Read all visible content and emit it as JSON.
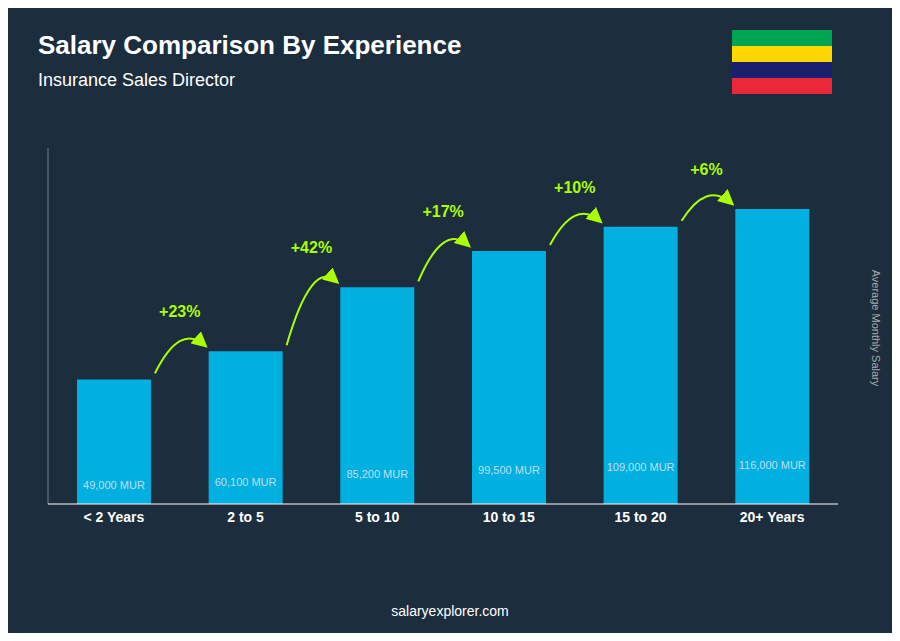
{
  "chart_data": {
    "type": "bar",
    "title": "Salary Comparison By Experience",
    "subtitle": "Insurance Sales Director",
    "categories": [
      "< 2 Years",
      "2 to 5",
      "5 to 10",
      "10 to 15",
      "15 to 20",
      "20+ Years"
    ],
    "values": [
      49000,
      60100,
      85200,
      99500,
      109000,
      116000
    ],
    "value_labels": [
      "49,000 MUR",
      "60,100 MUR",
      "85,200 MUR",
      "99,500 MUR",
      "109,000 MUR",
      "116,000 MUR"
    ],
    "data_labels": true,
    "annotations": [
      null,
      "+23%",
      "+42%",
      "+17%",
      "+10%",
      "+6%"
    ],
    "ylabel": "Average Monthly Salary",
    "footer": "salaryexplorer.com",
    "ylim": [
      0,
      140000
    ],
    "tick_labels": "x",
    "grid": false,
    "color": "#00b0e0"
  }
}
